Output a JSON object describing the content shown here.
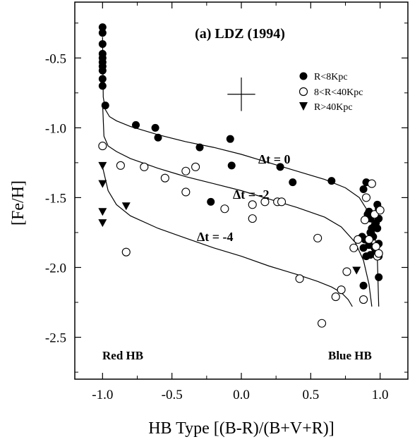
{
  "chart_data": {
    "type": "scatter",
    "title": "(a)  LDZ (1994)",
    "xlabel": "HB Type [(B-R)/(B+V+R)]",
    "ylabel": "[Fe/H]",
    "xlim": [
      -1.2,
      1.2
    ],
    "ylim": [
      -2.8,
      -0.1
    ],
    "xticks": [
      -1.0,
      -0.5,
      0.0,
      0.5,
      1.0
    ],
    "xtick_labels": [
      "-1.0",
      "-0.5",
      "0.0",
      "0.5",
      "1.0"
    ],
    "yticks": [
      -0.5,
      -1.0,
      -1.5,
      -2.0,
      -2.5
    ],
    "ytick_labels": [
      "-0.5",
      "-1.0",
      "-1.5",
      "-2.0",
      "-2.5"
    ],
    "grid": false,
    "legend_position": "top-right",
    "legend": [
      {
        "label": "R<8Kpc",
        "marker": "filled-circle"
      },
      {
        "label": "8<R<40Kpc",
        "marker": "open-circle"
      },
      {
        "label": "R>40Kpc",
        "marker": "filled-triangle-down"
      }
    ],
    "annotations": {
      "red_hb": "Red HB",
      "blue_hb": "Blue HB",
      "dt0": "Δt = 0",
      "dt2": "Δt = -2",
      "dt4": "Δt = -4"
    },
    "error_bar": {
      "x": 0.0,
      "y": -0.76,
      "dx": 0.1,
      "dy": 0.12
    },
    "series": [
      {
        "name": "R<8Kpc",
        "marker": "filled-circle",
        "points": [
          [
            -1.0,
            -0.28
          ],
          [
            -1.0,
            -0.32
          ],
          [
            -1.0,
            -0.4
          ],
          [
            -1.0,
            -0.47
          ],
          [
            -1.0,
            -0.5
          ],
          [
            -1.0,
            -0.53
          ],
          [
            -1.0,
            -0.56
          ],
          [
            -1.0,
            -0.59
          ],
          [
            -1.0,
            -0.65
          ],
          [
            -1.0,
            -0.7
          ],
          [
            -0.98,
            -0.84
          ],
          [
            -0.76,
            -0.98
          ],
          [
            -0.62,
            -1.0
          ],
          [
            -0.6,
            -1.07
          ],
          [
            -0.3,
            -1.14
          ],
          [
            -0.08,
            -1.08
          ],
          [
            -0.07,
            -1.27
          ],
          [
            -0.22,
            -1.53
          ],
          [
            0.28,
            -1.28
          ],
          [
            0.37,
            -1.39
          ],
          [
            0.65,
            -1.38
          ],
          [
            0.88,
            -1.44
          ],
          [
            0.9,
            -1.39
          ],
          [
            0.91,
            -1.62
          ],
          [
            0.92,
            -1.6
          ],
          [
            0.93,
            -1.65
          ],
          [
            0.94,
            -1.72
          ],
          [
            0.97,
            -1.68
          ],
          [
            0.98,
            -1.55
          ],
          [
            0.99,
            -1.58
          ],
          [
            0.99,
            -1.65
          ],
          [
            0.96,
            -1.7
          ],
          [
            0.93,
            -1.75
          ],
          [
            0.95,
            -1.78
          ],
          [
            0.98,
            -1.72
          ],
          [
            0.87,
            -1.78
          ],
          [
            0.89,
            -1.8
          ],
          [
            0.92,
            -1.84
          ],
          [
            0.96,
            -1.86
          ],
          [
            0.99,
            -1.83
          ],
          [
            0.88,
            -1.86
          ],
          [
            0.9,
            -1.92
          ],
          [
            0.93,
            -1.91
          ],
          [
            0.96,
            -1.9
          ],
          [
            0.99,
            -1.92
          ],
          [
            0.88,
            -2.13
          ],
          [
            0.99,
            -2.07
          ]
        ]
      },
      {
        "name": "8<R<40Kpc",
        "marker": "open-circle",
        "points": [
          [
            -1.0,
            -1.13
          ],
          [
            -0.87,
            -1.27
          ],
          [
            -0.7,
            -1.28
          ],
          [
            -0.55,
            -1.36
          ],
          [
            -0.4,
            -1.31
          ],
          [
            -0.33,
            -1.28
          ],
          [
            -0.4,
            -1.46
          ],
          [
            -0.12,
            -1.58
          ],
          [
            0.08,
            -1.55
          ],
          [
            0.17,
            -1.53
          ],
          [
            0.26,
            -1.53
          ],
          [
            0.29,
            -1.53
          ],
          [
            0.08,
            -1.65
          ],
          [
            -0.83,
            -1.89
          ],
          [
            0.42,
            -2.08
          ],
          [
            0.55,
            -1.79
          ],
          [
            0.68,
            -2.21
          ],
          [
            0.72,
            -2.16
          ],
          [
            0.76,
            -2.03
          ],
          [
            0.81,
            -1.86
          ],
          [
            0.84,
            -1.8
          ],
          [
            0.88,
            -2.23
          ],
          [
            0.89,
            -1.66
          ],
          [
            0.9,
            -1.5
          ],
          [
            0.92,
            -1.8
          ],
          [
            0.94,
            -1.4
          ],
          [
            0.96,
            -1.62
          ],
          [
            0.97,
            -1.85
          ],
          [
            0.98,
            -1.92
          ],
          [
            0.99,
            -1.9
          ],
          [
            1.0,
            -1.59
          ],
          [
            0.58,
            -2.4
          ]
        ]
      },
      {
        "name": "R>40Kpc",
        "marker": "filled-triangle-down",
        "points": [
          [
            -1.0,
            -1.27
          ],
          [
            -1.0,
            -1.4
          ],
          [
            -1.0,
            -1.6
          ],
          [
            -1.0,
            -1.68
          ],
          [
            -0.83,
            -1.56
          ],
          [
            0.83,
            -2.02
          ]
        ]
      }
    ],
    "curves": [
      {
        "name": "Δt = 0",
        "points": [
          [
            -1.0,
            -0.35
          ],
          [
            -0.995,
            -0.78
          ],
          [
            -0.98,
            -0.87
          ],
          [
            -0.95,
            -0.92
          ],
          [
            -0.9,
            -0.95
          ],
          [
            -0.8,
            -0.99
          ],
          [
            -0.6,
            -1.05
          ],
          [
            -0.4,
            -1.1
          ],
          [
            -0.2,
            -1.14
          ],
          [
            0.0,
            -1.19
          ],
          [
            0.2,
            -1.25
          ],
          [
            0.4,
            -1.31
          ],
          [
            0.6,
            -1.37
          ],
          [
            0.75,
            -1.43
          ],
          [
            0.85,
            -1.5
          ],
          [
            0.92,
            -1.61
          ],
          [
            0.96,
            -1.75
          ],
          [
            0.98,
            -1.93
          ],
          [
            0.99,
            -2.28
          ]
        ]
      },
      {
        "name": "Δt = -2",
        "points": [
          [
            -1.0,
            -0.82
          ],
          [
            -0.99,
            -1.06
          ],
          [
            -0.96,
            -1.13
          ],
          [
            -0.9,
            -1.17
          ],
          [
            -0.8,
            -1.22
          ],
          [
            -0.6,
            -1.29
          ],
          [
            -0.4,
            -1.35
          ],
          [
            -0.2,
            -1.4
          ],
          [
            0.0,
            -1.45
          ],
          [
            0.2,
            -1.51
          ],
          [
            0.4,
            -1.57
          ],
          [
            0.6,
            -1.64
          ],
          [
            0.72,
            -1.71
          ],
          [
            0.82,
            -1.82
          ],
          [
            0.88,
            -1.95
          ],
          [
            0.92,
            -2.12
          ],
          [
            0.94,
            -2.28
          ]
        ]
      },
      {
        "name": "Δt = -4",
        "points": [
          [
            -1.0,
            -1.28
          ],
          [
            -0.96,
            -1.45
          ],
          [
            -0.9,
            -1.55
          ],
          [
            -0.8,
            -1.63
          ],
          [
            -0.6,
            -1.72
          ],
          [
            -0.4,
            -1.79
          ],
          [
            -0.2,
            -1.86
          ],
          [
            0.0,
            -1.92
          ],
          [
            0.2,
            -1.99
          ],
          [
            0.4,
            -2.05
          ],
          [
            0.55,
            -2.1
          ],
          [
            0.65,
            -2.14
          ],
          [
            0.72,
            -2.18
          ],
          [
            0.77,
            -2.23
          ],
          [
            0.8,
            -2.28
          ]
        ]
      }
    ]
  }
}
